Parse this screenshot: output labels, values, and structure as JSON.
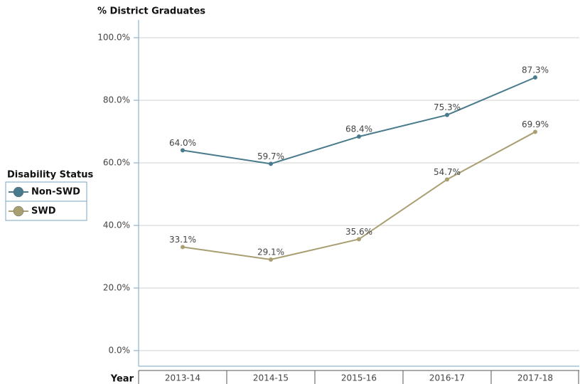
{
  "chart_data": {
    "type": "line",
    "title": "% District Graduates",
    "x_label": "Year",
    "legend_title": "Disability Status",
    "categories": [
      "2013-14",
      "2014-15",
      "2015-16",
      "2016-17",
      "2017-18"
    ],
    "series": [
      {
        "name": "Non-SWD",
        "color": "#4a7b8c",
        "values": [
          64.0,
          59.7,
          68.4,
          75.3,
          87.3
        ],
        "value_labels": [
          "64.0%",
          "59.7%",
          "68.4%",
          "75.3%",
          "87.3%"
        ]
      },
      {
        "name": "SWD",
        "color": "#a89f72",
        "values": [
          33.1,
          29.1,
          35.6,
          54.7,
          69.9
        ],
        "value_labels": [
          "33.1%",
          "29.1%",
          "35.6%",
          "54.7%",
          "69.9%"
        ]
      }
    ],
    "ylim": [
      -5,
      105
    ],
    "yticks": [
      {
        "value": 0,
        "label": "0.0%"
      },
      {
        "value": 20,
        "label": "20.0%"
      },
      {
        "value": 40,
        "label": "40.0%"
      },
      {
        "value": 60,
        "label": "60.0%"
      },
      {
        "value": 80,
        "label": "80.0%"
      },
      {
        "value": 100,
        "label": "100.0%"
      }
    ],
    "grid": true,
    "legend": "left"
  }
}
